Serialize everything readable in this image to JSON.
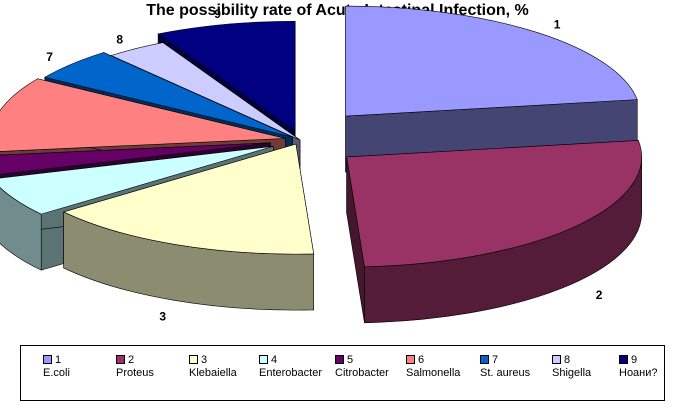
{
  "chart_data": {
    "type": "pie",
    "title": "The possibility rate of Acute Intestinal Infection, %",
    "categories": [
      "1",
      "2",
      "3",
      "4",
      "5",
      "6",
      "7",
      "8",
      "9"
    ],
    "category_names": [
      "E.coli",
      "Proteus",
      "Klebaiella",
      "Enterobacter",
      "Citrobacter",
      "Salmonella",
      "St. aureus",
      "Shigella",
      "Ноани?"
    ],
    "values": [
      23.5,
      27.5,
      16.0,
      6.0,
      3.0,
      11.5,
      5.0,
      3.5,
      8.0
    ],
    "colors": [
      "#9999ff",
      "#993366",
      "#ffffcc",
      "#ccffff",
      "#660066",
      "#ff8080",
      "#0066cc",
      "#ccccff",
      "#000080"
    ],
    "exploded": true,
    "three_d": true,
    "legend_position": "bottom",
    "grid": false
  }
}
